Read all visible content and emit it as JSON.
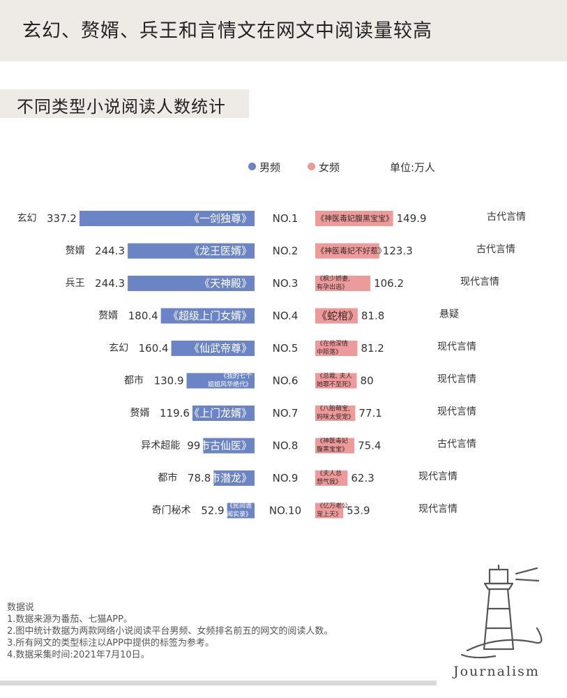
{
  "title": "玄幻、赘婿、兵王和言情文在网文中阅读量较高",
  "subtitle": "不同类型小说阅读人数统计",
  "legend": {
    "male": "男频",
    "female": "女频",
    "unit": "单位:万人"
  },
  "colors": {
    "male": "#6b84c5",
    "female": "#ec9a9a"
  },
  "chart_data": {
    "type": "bar",
    "orientation": "horizontal-butterfly",
    "unit": "万人",
    "ranks": [
      "NO.1",
      "NO.2",
      "NO.3",
      "NO.4",
      "NO.5",
      "NO.6",
      "NO.7",
      "NO.8",
      "NO.9",
      "NO.10"
    ],
    "series": [
      {
        "name": "男频",
        "values": [
          337.2,
          244.3,
          244.3,
          180.4,
          160.4,
          130.9,
          119.6,
          99,
          78.8,
          52.9
        ],
        "value_labels": [
          "337.2",
          "244.3",
          "244.3",
          "180.4",
          "160.4",
          "130.9",
          "119.6",
          "99",
          "78.8",
          "52.9"
        ],
        "genres": [
          "玄幻",
          "赘婿",
          "兵王",
          "赘婿",
          "玄幻",
          "都市",
          "赘婿",
          "异术超能",
          "都市",
          "奇门秘术"
        ],
        "titles": [
          [
            "《一剑独尊》"
          ],
          [
            "《龙王医婿》"
          ],
          [
            "《天神殿》"
          ],
          [
            "《超级上门女婿》"
          ],
          [
            "《仙武帝尊》"
          ],
          [
            "《我的七个",
            "姐姐风华绝代》"
          ],
          [
            "《上门龙婿》"
          ],
          [
            "《都市古仙医》"
          ],
          [
            "《都市潜龙》"
          ],
          [
            "《民间诡",
            "闻实录》"
          ]
        ]
      },
      {
        "name": "女频",
        "values": [
          149.9,
          123.3,
          106.2,
          81.8,
          81.2,
          80,
          77.1,
          75.4,
          62.3,
          53.9
        ],
        "value_labels": [
          "149.9",
          "123.3",
          "106.2",
          "81.8",
          "81.2",
          "80",
          "77.1",
          "75.4",
          "62.3",
          "53.9"
        ],
        "genres": [
          "古代言情",
          "古代言情",
          "现代言情",
          "悬疑",
          "现代言情",
          "现代言情",
          "现代言情",
          "古代言情",
          "现代言情",
          "现代言情"
        ],
        "titles": [
          [
            "《神医毒妃腹黑宝宝》"
          ],
          [
            "《神医毒妃不好惹》"
          ],
          [
            "《枫少娇妻,",
            "有孕出逃》"
          ],
          [
            "《蛇棺》"
          ],
          [
            "《在他深情",
            "中陨落》"
          ],
          [
            "《总裁, 夫人",
            "她罪不至死》"
          ],
          [
            "《八胎萌宝,",
            "妈咪太受宠》"
          ],
          [
            "《神医毒妃",
            "腹黑宝宝》"
          ],
          [
            "《夫人总",
            "想气我》"
          ],
          [
            "《亿万老公",
            "宠上天》"
          ]
        ]
      }
    ]
  },
  "notes": {
    "heading": "数据说",
    "items": [
      "1.数据来源为番茄、七猫APP。",
      "2.图中统计数据为两款网络小说阅读平台男频、女频排名前五的网文的阅读人数。",
      "3.所有网文的类型标注以APP中提供的标签为参考。",
      "4.数据采集时间:2021年7月10日。"
    ]
  },
  "brand": "Journalism"
}
